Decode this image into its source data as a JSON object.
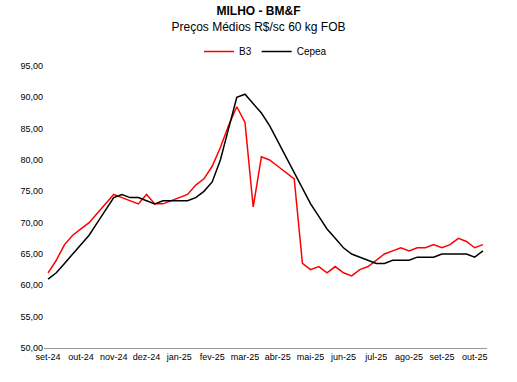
{
  "chart_data": {
    "type": "line",
    "title": "MILHO - BM&F",
    "subtitle": "Preços Médios R$/sc 60 kg FOB",
    "categories": [
      "set-24",
      null,
      null,
      null,
      "out-24",
      null,
      null,
      null,
      "nov-24",
      null,
      null,
      null,
      "dez-24",
      null,
      null,
      null,
      "jan-25",
      null,
      null,
      null,
      "fev-25",
      null,
      null,
      null,
      "mar-25",
      null,
      null,
      null,
      "abr-25",
      null,
      null,
      null,
      "mai-25",
      null,
      null,
      null,
      "jun-25",
      null,
      null,
      null,
      "jul-25",
      null,
      null,
      null,
      "ago-25",
      null,
      null,
      null,
      "set-25",
      null,
      null,
      null,
      "out-25",
      null
    ],
    "series": [
      {
        "name": "B3",
        "color": "#ff0000",
        "values": [
          62.0,
          64.0,
          66.5,
          68.0,
          69.0,
          70.0,
          71.5,
          73.0,
          74.5,
          74.0,
          73.5,
          73.0,
          74.5,
          73.0,
          73.0,
          73.5,
          74.0,
          74.5,
          76.0,
          77.0,
          79.0,
          82.0,
          85.5,
          88.5,
          86.0,
          72.5,
          80.5,
          80.0,
          79.0,
          78.0,
          77.0,
          63.5,
          62.5,
          63.0,
          62.0,
          63.0,
          62.0,
          61.5,
          62.5,
          63.0,
          64.0,
          65.0,
          65.5,
          66.0,
          65.5,
          66.0,
          66.0,
          66.5,
          66.0,
          66.5,
          67.5,
          67.0,
          66.0,
          66.5
        ]
      },
      {
        "name": "Cepea",
        "color": "#000000",
        "values": [
          61.0,
          62.0,
          63.5,
          65.0,
          66.5,
          68.0,
          70.0,
          72.0,
          74.0,
          74.5,
          74.0,
          74.0,
          73.5,
          73.0,
          73.5,
          73.5,
          73.5,
          73.5,
          74.0,
          75.0,
          76.5,
          80.0,
          85.0,
          90.0,
          90.5,
          89.0,
          87.5,
          85.5,
          83.0,
          80.5,
          78.0,
          75.5,
          73.0,
          71.0,
          69.0,
          67.5,
          66.0,
          65.0,
          64.5,
          64.0,
          63.5,
          63.5,
          64.0,
          64.0,
          64.0,
          64.5,
          64.5,
          64.5,
          65.0,
          65.0,
          65.0,
          65.0,
          64.5,
          65.5
        ]
      }
    ],
    "ylim": [
      50,
      95
    ],
    "yticks": [
      {
        "value": 50,
        "label": "50,00"
      },
      {
        "value": 55,
        "label": "55,00"
      },
      {
        "value": 60,
        "label": "60,00"
      },
      {
        "value": 65,
        "label": "65,00"
      },
      {
        "value": 70,
        "label": "70,00"
      },
      {
        "value": 75,
        "label": "75,00"
      },
      {
        "value": 80,
        "label": "80,00"
      },
      {
        "value": 85,
        "label": "85,00"
      },
      {
        "value": 90,
        "label": "90,00"
      },
      {
        "value": 95,
        "label": "95,00"
      }
    ],
    "grid": false,
    "legend": "top"
  }
}
